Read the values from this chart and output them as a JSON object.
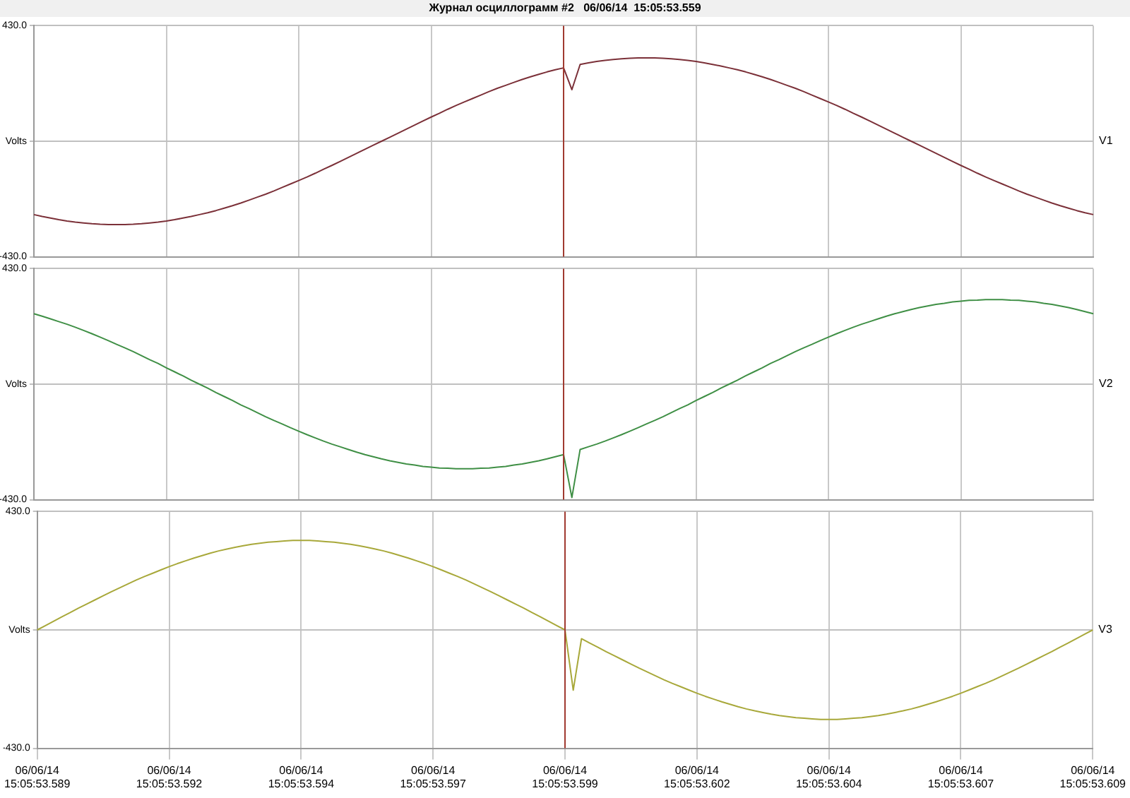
{
  "chart_data": [
    {
      "type": "line",
      "title": "Журнал осциллограмм #2   06/06/14  15:05:53.559",
      "tick_labels": "y",
      "grid": true,
      "legend": false,
      "marker": "none",
      "line_style": "solid",
      "categories": [
        "06/06/14 15:05:53.589",
        null,
        null,
        null,
        null,
        null,
        null,
        null,
        null,
        null,
        null,
        null,
        null,
        null,
        null,
        null,
        "06/06/14 15:05:53.592",
        null,
        null,
        null,
        null,
        null,
        null,
        null,
        null,
        null,
        null,
        null,
        null,
        null,
        null,
        null,
        "06/06/14 15:05:53.594",
        null,
        null,
        null,
        null,
        null,
        null,
        null,
        null,
        null,
        null,
        null,
        null,
        null,
        null,
        null,
        "06/06/14 15:05:53.597",
        null,
        null,
        null,
        null,
        null,
        null,
        null,
        null,
        null,
        null,
        null,
        null,
        null,
        null,
        null,
        "06/06/14 15:05:53.599",
        null,
        null,
        null,
        null,
        null,
        null,
        null,
        null,
        null,
        null,
        null,
        null,
        null,
        null,
        null,
        "06/06/14 15:05:53.602",
        null,
        null,
        null,
        null,
        null,
        null,
        null,
        null,
        null,
        null,
        null,
        null,
        null,
        null,
        null,
        "06/06/14 15:05:53.604",
        null,
        null,
        null,
        null,
        null,
        null,
        null,
        null,
        null,
        null,
        null,
        null,
        null,
        null,
        null,
        "06/06/14 15:05:53.607",
        null,
        null,
        null,
        null,
        null,
        null,
        null,
        null,
        null,
        null,
        null,
        null,
        null,
        null,
        null,
        "06/06/14 15:05:53.609"
      ],
      "ylim": [
        -430,
        430
      ],
      "yticks": [
        {
          "value": -430,
          "label": "-430.0"
        },
        {
          "value": 0,
          "label": "Volts"
        },
        {
          "value": 430,
          "label": "430.0"
        }
      ],
      "ref_lines": [
        {
          "axis": "x",
          "value": "06/06/14 15:05:53.599",
          "color": "#a03a30"
        }
      ],
      "series": [
        {
          "name": "V1",
          "color": "#7b3038",
          "values": [
            -273,
            -280,
            -286,
            -292,
            -297,
            -301,
            -304,
            -307,
            -309,
            -310,
            -310,
            -310,
            -309,
            -307,
            -304,
            -301,
            -297,
            -292,
            -286,
            -280,
            -273,
            -266,
            -258,
            -249,
            -240,
            -230,
            -219,
            -208,
            -197,
            -185,
            -172,
            -159,
            -146,
            -133,
            -119,
            -104,
            -90,
            -75,
            -60,
            -45,
            -30,
            -15,
            0,
            15,
            30,
            45,
            60,
            75,
            90,
            104,
            119,
            133,
            146,
            159,
            172,
            185,
            197,
            208,
            219,
            230,
            240,
            249,
            258,
            266,
            273,
            192,
            286,
            292,
            297,
            301,
            304,
            307,
            309,
            310,
            310,
            310,
            309,
            307,
            304,
            301,
            297,
            292,
            286,
            280,
            273,
            266,
            258,
            249,
            240,
            230,
            219,
            208,
            197,
            185,
            172,
            159,
            146,
            133,
            119,
            104,
            90,
            75,
            60,
            45,
            30,
            15,
            0,
            -15,
            -30,
            -45,
            -60,
            -75,
            -90,
            -104,
            -119,
            -133,
            -146,
            -159,
            -172,
            -185,
            -197,
            -208,
            -219,
            -230,
            -240,
            -249,
            -258,
            -266,
            -273
          ]
        }
      ]
    },
    {
      "type": "line",
      "tick_labels": "y",
      "grid": true,
      "legend": false,
      "marker": "none",
      "line_style": "solid",
      "categories": [
        "06/06/14 15:05:53.589",
        null,
        null,
        null,
        null,
        null,
        null,
        null,
        null,
        null,
        null,
        null,
        null,
        null,
        null,
        null,
        "06/06/14 15:05:53.592",
        null,
        null,
        null,
        null,
        null,
        null,
        null,
        null,
        null,
        null,
        null,
        null,
        null,
        null,
        null,
        "06/06/14 15:05:53.594",
        null,
        null,
        null,
        null,
        null,
        null,
        null,
        null,
        null,
        null,
        null,
        null,
        null,
        null,
        null,
        "06/06/14 15:05:53.597",
        null,
        null,
        null,
        null,
        null,
        null,
        null,
        null,
        null,
        null,
        null,
        null,
        null,
        null,
        null,
        "06/06/14 15:05:53.599",
        null,
        null,
        null,
        null,
        null,
        null,
        null,
        null,
        null,
        null,
        null,
        null,
        null,
        null,
        null,
        "06/06/14 15:05:53.602",
        null,
        null,
        null,
        null,
        null,
        null,
        null,
        null,
        null,
        null,
        null,
        null,
        null,
        null,
        null,
        "06/06/14 15:05:53.604",
        null,
        null,
        null,
        null,
        null,
        null,
        null,
        null,
        null,
        null,
        null,
        null,
        null,
        null,
        null,
        "06/06/14 15:05:53.607",
        null,
        null,
        null,
        null,
        null,
        null,
        null,
        null,
        null,
        null,
        null,
        null,
        null,
        null,
        null,
        "06/06/14 15:05:53.609"
      ],
      "ylim": [
        -430,
        430
      ],
      "yticks": [
        {
          "value": -430,
          "label": "-430.0"
        },
        {
          "value": 0,
          "label": "Volts"
        },
        {
          "value": 430,
          "label": "430.0"
        }
      ],
      "ref_lines": [
        {
          "axis": "x",
          "value": "06/06/14 15:05:53.599",
          "color": "#a03a30"
        }
      ],
      "series": [
        {
          "name": "V2",
          "color": "#3f8f45",
          "values": [
            262,
            253,
            243,
            233,
            223,
            212,
            200,
            188,
            175,
            162,
            148,
            135,
            121,
            106,
            91,
            77,
            61,
            46,
            31,
            15,
            0,
            -15,
            -31,
            -46,
            -61,
            -77,
            -91,
            -106,
            -121,
            -135,
            -148,
            -162,
            -175,
            -188,
            -200,
            -212,
            -223,
            -233,
            -243,
            -253,
            -262,
            -270,
            -278,
            -285,
            -291,
            -297,
            -301,
            -306,
            -309,
            -312,
            -313,
            -315,
            -315,
            -315,
            -313,
            -312,
            -309,
            -306,
            -301,
            -297,
            -291,
            -285,
            -278,
            -270,
            -262,
            -422,
            -243,
            -233,
            -223,
            -212,
            -200,
            -188,
            -175,
            -162,
            -148,
            -135,
            -121,
            -106,
            -91,
            -77,
            -61,
            -46,
            -31,
            -15,
            0,
            15,
            31,
            46,
            61,
            77,
            91,
            106,
            121,
            135,
            148,
            162,
            175,
            188,
            200,
            212,
            223,
            233,
            243,
            253,
            262,
            270,
            278,
            285,
            291,
            297,
            301,
            306,
            309,
            312,
            313,
            315,
            315,
            315,
            313,
            312,
            309,
            306,
            301,
            297,
            291,
            285,
            278,
            270,
            262
          ]
        }
      ]
    },
    {
      "type": "line",
      "grid": true,
      "legend": false,
      "marker": "none",
      "line_style": "solid",
      "categories": [
        "06/06/14 15:05:53.589",
        null,
        null,
        null,
        null,
        null,
        null,
        null,
        null,
        null,
        null,
        null,
        null,
        null,
        null,
        null,
        "06/06/14 15:05:53.592",
        null,
        null,
        null,
        null,
        null,
        null,
        null,
        null,
        null,
        null,
        null,
        null,
        null,
        null,
        null,
        "06/06/14 15:05:53.594",
        null,
        null,
        null,
        null,
        null,
        null,
        null,
        null,
        null,
        null,
        null,
        null,
        null,
        null,
        null,
        "06/06/14 15:05:53.597",
        null,
        null,
        null,
        null,
        null,
        null,
        null,
        null,
        null,
        null,
        null,
        null,
        null,
        null,
        null,
        "06/06/14 15:05:53.599",
        null,
        null,
        null,
        null,
        null,
        null,
        null,
        null,
        null,
        null,
        null,
        null,
        null,
        null,
        null,
        "06/06/14 15:05:53.602",
        null,
        null,
        null,
        null,
        null,
        null,
        null,
        null,
        null,
        null,
        null,
        null,
        null,
        null,
        null,
        "06/06/14 15:05:53.604",
        null,
        null,
        null,
        null,
        null,
        null,
        null,
        null,
        null,
        null,
        null,
        null,
        null,
        null,
        null,
        "06/06/14 15:05:53.607",
        null,
        null,
        null,
        null,
        null,
        null,
        null,
        null,
        null,
        null,
        null,
        null,
        null,
        null,
        null,
        "06/06/14 15:05:53.609"
      ],
      "ylim": [
        -430,
        430
      ],
      "yticks": [
        {
          "value": -430,
          "label": "-430.0"
        },
        {
          "value": 0,
          "label": "Volts"
        },
        {
          "value": 430,
          "label": "430.0"
        }
      ],
      "ref_lines": [
        {
          "axis": "x",
          "value": "06/06/14 15:05:53.599",
          "color": "#a03a30"
        }
      ],
      "series": [
        {
          "name": "V3",
          "color": "#a8a83a",
          "values": [
            0,
            16,
            32,
            48,
            63,
            79,
            94,
            109,
            124,
            139,
            153,
            167,
            181,
            194,
            206,
            218,
            230,
            241,
            251,
            261,
            270,
            279,
            287,
            294,
            300,
            306,
            311,
            315,
            319,
            321,
            323,
            325,
            325,
            325,
            323,
            321,
            319,
            315,
            311,
            306,
            300,
            294,
            287,
            279,
            270,
            261,
            251,
            241,
            230,
            218,
            206,
            194,
            181,
            167,
            153,
            139,
            124,
            109,
            94,
            79,
            63,
            48,
            32,
            16,
            0,
            -219,
            -32,
            -48,
            -63,
            -79,
            -94,
            -109,
            -124,
            -139,
            -153,
            -167,
            -181,
            -194,
            -206,
            -218,
            -230,
            -241,
            -251,
            -261,
            -270,
            -279,
            -287,
            -294,
            -300,
            -306,
            -311,
            -315,
            -319,
            -321,
            -323,
            -325,
            -325,
            -325,
            -323,
            -321,
            -319,
            -315,
            -311,
            -306,
            -300,
            -294,
            -287,
            -279,
            -270,
            -261,
            -251,
            -241,
            -230,
            -218,
            -206,
            -194,
            -181,
            -167,
            -153,
            -139,
            -124,
            -109,
            -94,
            -79,
            -63,
            -48,
            -32,
            -16,
            0
          ]
        }
      ]
    }
  ]
}
